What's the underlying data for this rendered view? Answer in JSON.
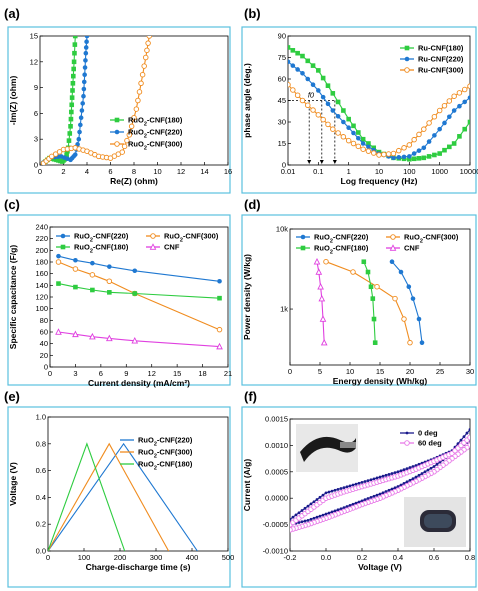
{
  "chart_data": [
    {
      "panel": "(a)",
      "type": "line",
      "xlabel": "Re(Z) (ohm)",
      "ylabel": "-Im(Z) (ohm)",
      "xlim": [
        0,
        16
      ],
      "ylim": [
        0,
        15
      ],
      "xticks": [
        0,
        2,
        4,
        6,
        8,
        10,
        12,
        14,
        16
      ],
      "yticks": [
        0,
        3,
        6,
        9,
        12,
        15
      ],
      "legend_position": "center-right",
      "series": [
        {
          "name": "RuO2-CNF(180)",
          "color": "#2ecc40",
          "marker": "square",
          "x": [
            0.3,
            0.8,
            1.4,
            1.9,
            2.2,
            2.4,
            2.6,
            2.7,
            2.8,
            2.9,
            3.0
          ],
          "y": [
            0.2,
            0.8,
            0.6,
            0.4,
            0.8,
            2.0,
            4.5,
            7.0,
            9.5,
            12.0,
            15.0
          ]
        },
        {
          "name": "RuO2-CNF(220)",
          "color": "#1f78d1",
          "marker": "circle",
          "x": [
            0.3,
            1.0,
            1.8,
            2.6,
            3.0,
            3.3,
            3.5,
            3.7,
            3.8,
            3.9,
            4.0
          ],
          "y": [
            0.3,
            0.9,
            1.0,
            0.6,
            1.2,
            3.0,
            5.5,
            8.0,
            10.5,
            13.0,
            15.0
          ]
        },
        {
          "name": "RuO2-CNF(300)",
          "color": "#f08c1f",
          "marker": "open-circle",
          "x": [
            0.3,
            1.0,
            2.0,
            3.0,
            4.0,
            5.0,
            6.0,
            7.0,
            7.6,
            8.2,
            8.6,
            9.0,
            9.3
          ],
          "y": [
            0.2,
            1.0,
            1.8,
            2.0,
            1.6,
            1.0,
            0.8,
            1.5,
            3.5,
            6.5,
            9.5,
            12.5,
            15.0
          ]
        }
      ]
    },
    {
      "panel": "(b)",
      "type": "line",
      "xlabel": "Log frequency (Hz)",
      "ylabel": "phase angle (deg.)",
      "xscale": "log",
      "xlim": [
        0.01,
        10000
      ],
      "ylim": [
        0,
        90
      ],
      "xticks": [
        0.01,
        0.1,
        1,
        10,
        100,
        1000,
        10000
      ],
      "xticklabels": [
        "0.01",
        "0.1",
        "1",
        "10",
        "100",
        "1000",
        "10000"
      ],
      "yticks": [
        0,
        15,
        30,
        45,
        60,
        75,
        90
      ],
      "legend_position": "top-right",
      "series": [
        {
          "name": "Ru-CNF(180)",
          "color": "#2ecc40",
          "marker": "square",
          "x": [
            0.01,
            0.03,
            0.1,
            0.3,
            1,
            3,
            10,
            30,
            100,
            300,
            1000,
            3000,
            10000
          ],
          "y": [
            82,
            76,
            66,
            50,
            32,
            18,
            9,
            5,
            4,
            5,
            8,
            15,
            30
          ]
        },
        {
          "name": "Ru-CNF(220)",
          "color": "#1f78d1",
          "marker": "circle",
          "x": [
            0.01,
            0.03,
            0.1,
            0.3,
            1,
            3,
            10,
            30,
            100,
            300,
            1000,
            3000,
            10000
          ],
          "y": [
            72,
            64,
            52,
            38,
            26,
            15,
            8,
            5,
            6,
            12,
            25,
            38,
            47
          ]
        },
        {
          "name": "Ru-CNF(300)",
          "color": "#f08c1f",
          "marker": "open-circle",
          "x": [
            0.01,
            0.03,
            0.1,
            0.3,
            1,
            3,
            10,
            30,
            100,
            300,
            1000,
            3000,
            10000
          ],
          "y": [
            56,
            45,
            35,
            25,
            17,
            11,
            7,
            8,
            14,
            25,
            38,
            48,
            55
          ]
        }
      ],
      "annotations": {
        "f0": "f0",
        "ref_y": 45,
        "ref_x": [
          0.05,
          0.13,
          0.35
        ]
      }
    },
    {
      "panel": "(c)",
      "type": "line",
      "xlabel": "Current density (mA/cm²)",
      "ylabel": "Specific capacitance (F/g)",
      "xlim": [
        0,
        21
      ],
      "ylim": [
        0,
        240
      ],
      "xticks": [
        0,
        3,
        6,
        9,
        12,
        15,
        18,
        21
      ],
      "yticks": [
        0,
        20,
        40,
        60,
        80,
        100,
        120,
        140,
        160,
        180,
        200,
        220,
        240
      ],
      "legend_position": "top",
      "series": [
        {
          "name": "RuO2-CNF(220)",
          "color": "#1f78d1",
          "marker": "circle",
          "x": [
            1,
            3,
            5,
            7,
            10,
            20
          ],
          "y": [
            190,
            183,
            178,
            172,
            165,
            147
          ]
        },
        {
          "name": "RuO2-CNF(300)",
          "color": "#f08c1f",
          "marker": "open-circle",
          "x": [
            1,
            3,
            5,
            7,
            10,
            20
          ],
          "y": [
            180,
            168,
            158,
            147,
            126,
            64
          ]
        },
        {
          "name": "RuO2-CNF(180)",
          "color": "#2ecc40",
          "marker": "square",
          "x": [
            1,
            3,
            5,
            7,
            10,
            20
          ],
          "y": [
            143,
            137,
            132,
            128,
            126,
            118
          ]
        },
        {
          "name": "CNF",
          "color": "#e040e0",
          "marker": "open-triangle",
          "x": [
            1,
            3,
            5,
            7,
            10,
            20
          ],
          "y": [
            60,
            56,
            52,
            49,
            45,
            35
          ]
        }
      ]
    },
    {
      "panel": "(d)",
      "type": "line",
      "xlabel": "Energy density (Wh/kg)",
      "ylabel": "Power density (W/kg)",
      "xlim": [
        0,
        30
      ],
      "yscale": "log",
      "ylim": [
        200,
        10000
      ],
      "xticks": [
        0,
        5,
        10,
        15,
        20,
        25,
        30
      ],
      "yticks": [
        1000,
        10000
      ],
      "yticklabels": [
        "1k",
        "10k"
      ],
      "legend_position": "top",
      "series": [
        {
          "name": "RuO2-CNF(220)",
          "color": "#1f78d1",
          "marker": "circle",
          "x": [
            17.0,
            18.5,
            19.8,
            20.5,
            21.5,
            22.0
          ],
          "y": [
            3900,
            2900,
            1900,
            1350,
            750,
            380
          ]
        },
        {
          "name": "RuO2-CNF(300)",
          "color": "#f08c1f",
          "marker": "open-circle",
          "x": [
            6.0,
            10.5,
            14.5,
            17.5,
            19.0,
            20.0
          ],
          "y": [
            3900,
            2900,
            1900,
            1350,
            750,
            380
          ]
        },
        {
          "name": "RuO2-CNF(180)",
          "color": "#2ecc40",
          "marker": "square",
          "x": [
            12.3,
            13.0,
            13.5,
            13.8,
            14.0,
            14.2
          ],
          "y": [
            3900,
            2900,
            1900,
            1350,
            750,
            380
          ]
        },
        {
          "name": "CNF",
          "color": "#e040e0",
          "marker": "open-triangle",
          "x": [
            4.5,
            4.8,
            5.1,
            5.3,
            5.5,
            5.7
          ],
          "y": [
            3900,
            2900,
            1900,
            1350,
            750,
            380
          ]
        }
      ]
    },
    {
      "panel": "(e)",
      "type": "line",
      "xlabel": "Charge-discharge time (s)",
      "ylabel": "Voltage (V)",
      "xlim": [
        0,
        500
      ],
      "ylim": [
        0,
        1.0
      ],
      "xticks": [
        0,
        100,
        200,
        300,
        400,
        500
      ],
      "yticks": [
        0.0,
        0.2,
        0.4,
        0.6,
        0.8,
        1.0
      ],
      "yticklabels": [
        "0.0",
        "0.2",
        "0.4",
        "0.6",
        "0.8",
        "1.0"
      ],
      "legend_position": "top-right",
      "series": [
        {
          "name": "RuO2-CNF(220)",
          "color": "#1f78d1",
          "x": [
            0,
            210,
            415
          ],
          "y": [
            0,
            0.8,
            0
          ]
        },
        {
          "name": "RuO2-CNF(300)",
          "color": "#f08c1f",
          "x": [
            0,
            170,
            335
          ],
          "y": [
            0,
            0.8,
            0
          ]
        },
        {
          "name": "RuO2-CNF(180)",
          "color": "#2ecc40",
          "x": [
            0,
            108,
            213
          ],
          "y": [
            0,
            0.8,
            0
          ]
        }
      ]
    },
    {
      "panel": "(f)",
      "type": "line",
      "xlabel": "Voltage (V)",
      "ylabel": "Current (A/g)",
      "xlim": [
        -0.2,
        0.8
      ],
      "ylim": [
        -0.001,
        0.0015
      ],
      "xticks": [
        -0.2,
        0.0,
        0.2,
        0.4,
        0.6,
        0.8
      ],
      "xticklabels": [
        "-0.2",
        "0.0",
        "0.2",
        "0.4",
        "0.6",
        "0.8"
      ],
      "yticks": [
        -0.001,
        -0.0005,
        0.0,
        0.0005,
        0.001,
        0.0015
      ],
      "yticklabels": [
        "-0.0010",
        "-0.0005",
        "0.0000",
        "0.0005",
        "0.0010",
        "0.0015"
      ],
      "legend_position": "top-right",
      "series": [
        {
          "name": "0 deg",
          "color": "#1a1a8c",
          "marker": "dot",
          "upper": {
            "x": [
              -0.2,
              -0.1,
              0.0,
              0.1,
              0.2,
              0.3,
              0.4,
              0.5,
              0.6,
              0.7,
              0.8
            ],
            "y": [
              -0.0004,
              -0.00015,
              0.0001,
              0.0002,
              0.0003,
              0.0004,
              0.0005,
              0.00062,
              0.00075,
              0.0009,
              0.0013
            ]
          },
          "lower": {
            "x": [
              0.8,
              0.7,
              0.6,
              0.5,
              0.4,
              0.3,
              0.2,
              0.1,
              0.0,
              -0.1,
              -0.2
            ],
            "y": [
              0.0011,
              0.00085,
              0.0006,
              0.0004,
              0.00022,
              8e-05,
              -5e-05,
              -0.00018,
              -0.0003,
              -0.00042,
              -0.0005
            ]
          }
        },
        {
          "name": "60 deg",
          "color": "#e879e8",
          "marker": "open-circle",
          "upper": {
            "x": [
              -0.2,
              -0.1,
              0.0,
              0.1,
              0.2,
              0.3,
              0.4,
              0.5,
              0.6,
              0.7,
              0.8
            ],
            "y": [
              -0.0005,
              -0.00025,
              0.0,
              0.00012,
              0.00022,
              0.00032,
              0.00042,
              0.00055,
              0.0007,
              0.00085,
              0.00115
            ]
          },
          "lower": {
            "x": [
              0.8,
              0.7,
              0.6,
              0.5,
              0.4,
              0.3,
              0.2,
              0.1,
              0.0,
              -0.1,
              -0.2
            ],
            "y": [
              0.001,
              0.00075,
              0.0005,
              0.00032,
              0.00015,
              0.0,
              -0.00012,
              -0.00025,
              -0.00038,
              -0.0005,
              -0.0006
            ]
          }
        }
      ]
    }
  ]
}
